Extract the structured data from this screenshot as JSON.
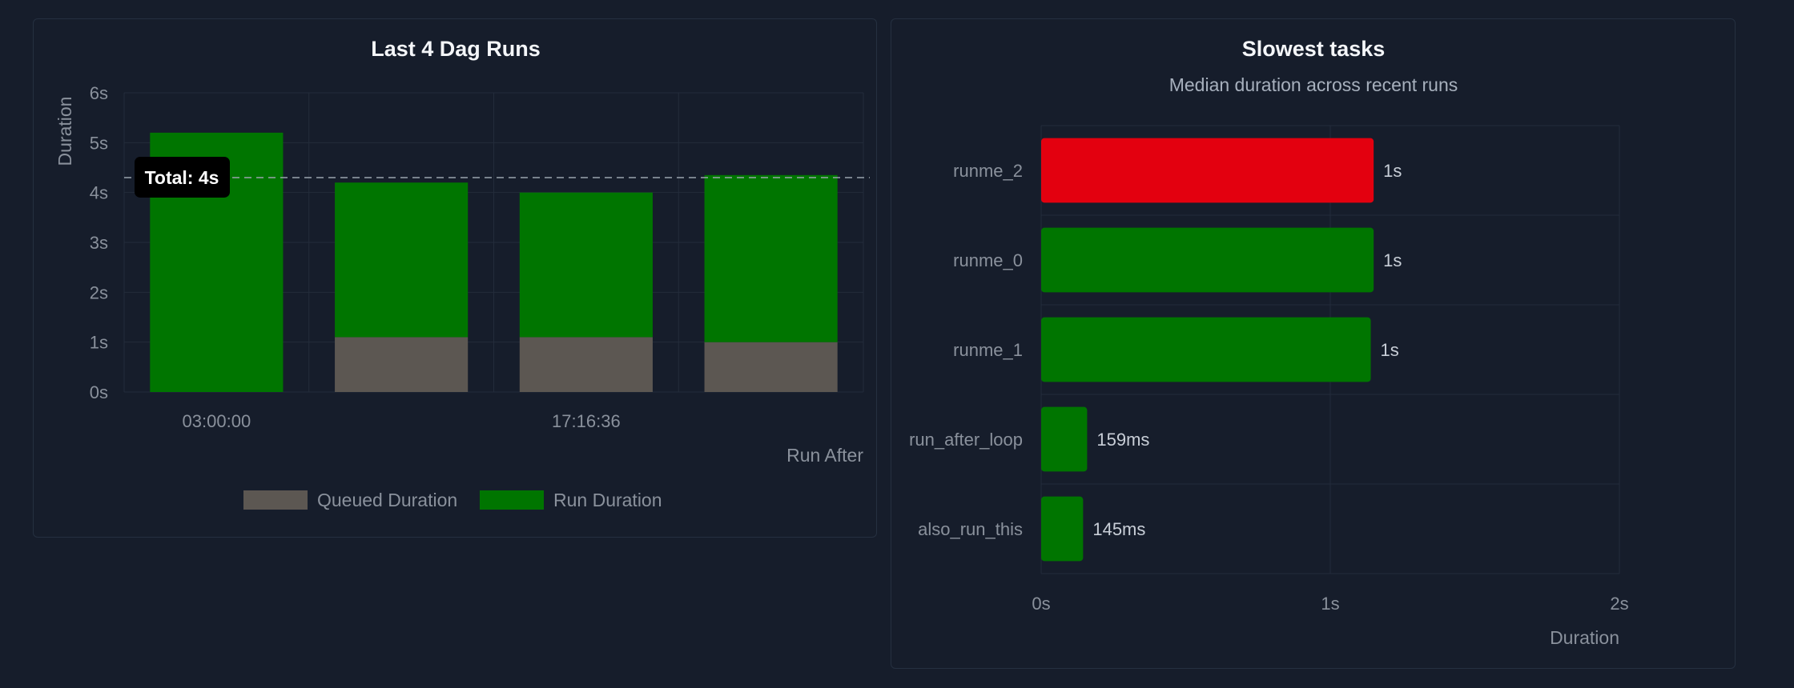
{
  "colors": {
    "run": "#007500",
    "queued": "#5c5752",
    "slowest": "#e3000f",
    "normal": "#007500",
    "tooltip_bg": "#000000",
    "reference_line": "#9aa3ae"
  },
  "chart_data": [
    {
      "id": "dag-runs",
      "type": "bar",
      "stacked": true,
      "title": "Last 4 Dag Runs",
      "xlabel": "Run After",
      "ylabel": "Duration",
      "ylim": [
        0,
        6
      ],
      "yticks": [
        "0s",
        "1s",
        "2s",
        "3s",
        "4s",
        "5s",
        "6s"
      ],
      "categories": [
        "03:00:00",
        "",
        "17:16:36",
        ""
      ],
      "series": [
        {
          "name": "Queued Duration",
          "values": [
            0,
            1.1,
            1.1,
            1.0
          ]
        },
        {
          "name": "Run Duration",
          "values": [
            5.2,
            3.1,
            2.9,
            3.35
          ]
        }
      ],
      "reference_line": {
        "value": 4.3,
        "label": "Total: 4s"
      },
      "grid": true,
      "legend": "bottom"
    },
    {
      "id": "slowest-tasks",
      "type": "bar",
      "orientation": "horizontal",
      "title": "Slowest tasks",
      "subtitle": "Median duration across recent runs",
      "xlabel": "Duration",
      "xlim": [
        0,
        2
      ],
      "xticks": [
        "0s",
        "1s",
        "2s"
      ],
      "categories": [
        "runme_2",
        "runme_0",
        "runme_1",
        "run_after_loop",
        "also_run_this"
      ],
      "values": [
        1.15,
        1.15,
        1.14,
        0.159,
        0.145
      ],
      "labels": [
        "1s",
        "1s",
        "1s",
        "159ms",
        "145ms"
      ],
      "highlight_index": 0,
      "grid": true
    }
  ]
}
